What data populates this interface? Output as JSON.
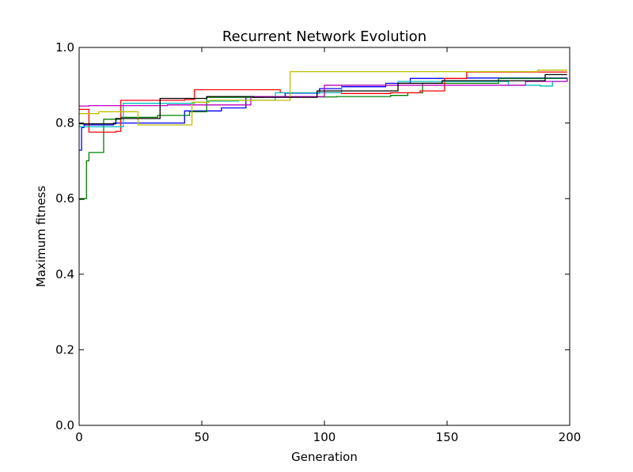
{
  "chart_data": {
    "type": "line",
    "title": "Recurrent Network Evolution",
    "xlabel": "Generation",
    "ylabel": "Maximum fitness",
    "xlim": [
      0,
      200
    ],
    "ylim": [
      0.0,
      1.0
    ],
    "xticks": [
      "0",
      "50",
      "100",
      "150",
      "200"
    ],
    "yticks": [
      "0.0",
      "0.2",
      "0.4",
      "0.6",
      "0.8",
      "1.0"
    ],
    "grid": false,
    "legend": "none",
    "series": [
      {
        "color": "#0000ff",
        "x": [
          0,
          1,
          2,
          14,
          33,
          43,
          58,
          68,
          84,
          98,
          107,
          125,
          135,
          158,
          199
        ],
        "y": [
          0.728,
          0.788,
          0.795,
          0.8,
          0.8,
          0.832,
          0.84,
          0.87,
          0.879,
          0.891,
          0.896,
          0.905,
          0.918,
          0.919,
          0.919
        ]
      },
      {
        "color": "#008000",
        "x": [
          0,
          2,
          3,
          4,
          10,
          17,
          32,
          45,
          52,
          75,
          105,
          127,
          134,
          140,
          171,
          199
        ],
        "y": [
          0.598,
          0.6,
          0.7,
          0.722,
          0.81,
          0.815,
          0.82,
          0.83,
          0.868,
          0.869,
          0.87,
          0.873,
          0.88,
          0.905,
          0.918,
          0.918
        ]
      },
      {
        "color": "#ff0000",
        "x": [
          0,
          4,
          15,
          17,
          43,
          47,
          82,
          107,
          127,
          139,
          149,
          158,
          199
        ],
        "y": [
          0.836,
          0.776,
          0.778,
          0.86,
          0.862,
          0.888,
          0.88,
          0.878,
          0.88,
          0.885,
          0.918,
          0.935,
          0.935
        ]
      },
      {
        "color": "#00bfbf",
        "x": [
          0,
          18,
          47,
          52,
          65,
          80,
          107,
          130,
          175,
          188,
          193,
          199
        ],
        "y": [
          0.79,
          0.852,
          0.855,
          0.858,
          0.86,
          0.88,
          0.9,
          0.91,
          0.9,
          0.898,
          0.91,
          0.915
        ]
      },
      {
        "color": "#bf00bf",
        "x": [
          0,
          4,
          36,
          70,
          100,
          160,
          182,
          199
        ],
        "y": [
          0.845,
          0.846,
          0.848,
          0.87,
          0.9,
          0.9,
          0.91,
          0.92
        ]
      },
      {
        "color": "#bfbf00",
        "x": [
          0,
          8,
          24,
          46,
          53,
          86,
          187,
          199
        ],
        "y": [
          0.825,
          0.83,
          0.795,
          0.855,
          0.86,
          0.936,
          0.94,
          0.94
        ]
      },
      {
        "color": "#000000",
        "x": [
          0,
          15,
          33,
          52,
          71,
          97,
          130,
          148,
          190,
          199
        ],
        "y": [
          0.798,
          0.812,
          0.865,
          0.87,
          0.868,
          0.885,
          0.905,
          0.912,
          0.928,
          0.928
        ]
      }
    ]
  }
}
